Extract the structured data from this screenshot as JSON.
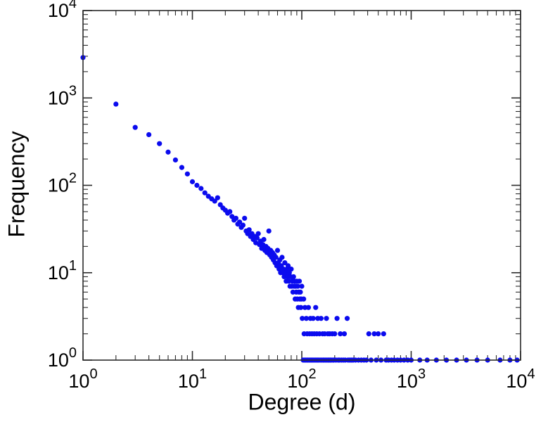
{
  "chart_data": {
    "type": "scatter",
    "title": "",
    "xlabel": "Degree (d)",
    "ylabel": "Frequency",
    "x_scale": "log",
    "y_scale": "log",
    "xlim": [
      1,
      10000
    ],
    "ylim": [
      1,
      10000
    ],
    "x_tick_exponents": [
      0,
      1,
      2,
      3,
      4
    ],
    "y_tick_exponents": [
      0,
      1,
      2,
      3,
      4
    ],
    "tick_base": "10",
    "grid": false,
    "legend": false,
    "marker": {
      "shape": "circle",
      "color": "#0b0bee",
      "radius": 3.6
    },
    "points": [
      [
        1,
        2900
      ],
      [
        2,
        850
      ],
      [
        3,
        460
      ],
      [
        4,
        380
      ],
      [
        5,
        300
      ],
      [
        6,
        240
      ],
      [
        7,
        195
      ],
      [
        8,
        160
      ],
      [
        9,
        135
      ],
      [
        10,
        110
      ],
      [
        11,
        100
      ],
      [
        12,
        92
      ],
      [
        13,
        82
      ],
      [
        14,
        75
      ],
      [
        15,
        70
      ],
      [
        16,
        66
      ],
      [
        17,
        72
      ],
      [
        18,
        60
      ],
      [
        19,
        55
      ],
      [
        20,
        52
      ],
      [
        21,
        48
      ],
      [
        22,
        50
      ],
      [
        23,
        44
      ],
      [
        24,
        40
      ],
      [
        25,
        42
      ],
      [
        26,
        36
      ],
      [
        27,
        38
      ],
      [
        28,
        33
      ],
      [
        29,
        35
      ],
      [
        30,
        42
      ],
      [
        31,
        30
      ],
      [
        32,
        28
      ],
      [
        33,
        31
      ],
      [
        34,
        26
      ],
      [
        35,
        28
      ],
      [
        36,
        24
      ],
      [
        37,
        26
      ],
      [
        38,
        22
      ],
      [
        39,
        25
      ],
      [
        40,
        28
      ],
      [
        41,
        21
      ],
      [
        42,
        23
      ],
      [
        43,
        19
      ],
      [
        44,
        21
      ],
      [
        45,
        24
      ],
      [
        46,
        18
      ],
      [
        47,
        20
      ],
      [
        48,
        17
      ],
      [
        49,
        19
      ],
      [
        50,
        30
      ],
      [
        51,
        16
      ],
      [
        52,
        18
      ],
      [
        53,
        15
      ],
      [
        54,
        17
      ],
      [
        55,
        14
      ],
      [
        56,
        16
      ],
      [
        57,
        13
      ],
      [
        58,
        15
      ],
      [
        59,
        12
      ],
      [
        60,
        18
      ],
      [
        61,
        13
      ],
      [
        62,
        11
      ],
      [
        63,
        14
      ],
      [
        64,
        10
      ],
      [
        65,
        12
      ],
      [
        66,
        15
      ],
      [
        67,
        10
      ],
      [
        68,
        11
      ],
      [
        69,
        9
      ],
      [
        70,
        13
      ],
      [
        71,
        10
      ],
      [
        72,
        8
      ],
      [
        73,
        11
      ],
      [
        74,
        9
      ],
      [
        75,
        12
      ],
      [
        76,
        8
      ],
      [
        77,
        10
      ],
      [
        78,
        7
      ],
      [
        79,
        9
      ],
      [
        80,
        11
      ],
      [
        81,
        7
      ],
      [
        82,
        8
      ],
      [
        83,
        6
      ],
      [
        84,
        9
      ],
      [
        85,
        7
      ],
      [
        86,
        8
      ],
      [
        87,
        5
      ],
      [
        88,
        7
      ],
      [
        89,
        6
      ],
      [
        90,
        8
      ],
      [
        91,
        5
      ],
      [
        92,
        7
      ],
      [
        93,
        4
      ],
      [
        94,
        6
      ],
      [
        95,
        8
      ],
      [
        96,
        5
      ],
      [
        97,
        6
      ],
      [
        98,
        4
      ],
      [
        99,
        5
      ],
      [
        100,
        7
      ],
      [
        101,
        3
      ],
      [
        103,
        1
      ],
      [
        104,
        5
      ],
      [
        105,
        2
      ],
      [
        106,
        1
      ],
      [
        107,
        4
      ],
      [
        108,
        1
      ],
      [
        110,
        3
      ],
      [
        111,
        1
      ],
      [
        112,
        2
      ],
      [
        113,
        1
      ],
      [
        115,
        4
      ],
      [
        116,
        1
      ],
      [
        118,
        2
      ],
      [
        119,
        1
      ],
      [
        120,
        3
      ],
      [
        122,
        1
      ],
      [
        124,
        2
      ],
      [
        125,
        1
      ],
      [
        127,
        3
      ],
      [
        128,
        1
      ],
      [
        130,
        2
      ],
      [
        132,
        1
      ],
      [
        134,
        4
      ],
      [
        135,
        1
      ],
      [
        137,
        2
      ],
      [
        139,
        1
      ],
      [
        140,
        3
      ],
      [
        142,
        1
      ],
      [
        145,
        2
      ],
      [
        147,
        1
      ],
      [
        150,
        3
      ],
      [
        152,
        1
      ],
      [
        155,
        2
      ],
      [
        157,
        1
      ],
      [
        160,
        1
      ],
      [
        162,
        2
      ],
      [
        165,
        1
      ],
      [
        168,
        3
      ],
      [
        170,
        1
      ],
      [
        173,
        2
      ],
      [
        175,
        1
      ],
      [
        178,
        1
      ],
      [
        180,
        2
      ],
      [
        183,
        1
      ],
      [
        186,
        1
      ],
      [
        190,
        2
      ],
      [
        193,
        1
      ],
      [
        196,
        1
      ],
      [
        200,
        2
      ],
      [
        205,
        1
      ],
      [
        210,
        3
      ],
      [
        215,
        1
      ],
      [
        220,
        1
      ],
      [
        225,
        2
      ],
      [
        230,
        1
      ],
      [
        240,
        1
      ],
      [
        245,
        2
      ],
      [
        250,
        1
      ],
      [
        260,
        3
      ],
      [
        265,
        1
      ],
      [
        275,
        1
      ],
      [
        285,
        1
      ],
      [
        295,
        1
      ],
      [
        310,
        1
      ],
      [
        330,
        1
      ],
      [
        350,
        1
      ],
      [
        370,
        1
      ],
      [
        390,
        1
      ],
      [
        410,
        2
      ],
      [
        430,
        1
      ],
      [
        460,
        2
      ],
      [
        480,
        1
      ],
      [
        500,
        2
      ],
      [
        530,
        1
      ],
      [
        560,
        2
      ],
      [
        590,
        1
      ],
      [
        620,
        1
      ],
      [
        660,
        1
      ],
      [
        700,
        1
      ],
      [
        750,
        1
      ],
      [
        800,
        1
      ],
      [
        860,
        1
      ],
      [
        930,
        1
      ],
      [
        1000,
        1
      ],
      [
        1200,
        1
      ],
      [
        1400,
        1
      ],
      [
        1700,
        1
      ],
      [
        2100,
        1
      ],
      [
        2600,
        1
      ],
      [
        3200,
        1
      ],
      [
        4000,
        1
      ],
      [
        5000,
        1
      ],
      [
        6500,
        1
      ],
      [
        8000,
        1
      ],
      [
        9300,
        1
      ]
    ]
  },
  "style": {
    "frame_color": "#2b2b2b",
    "tick_color": "#2b2b2b",
    "text_color": "#000000",
    "background": "#ffffff"
  }
}
